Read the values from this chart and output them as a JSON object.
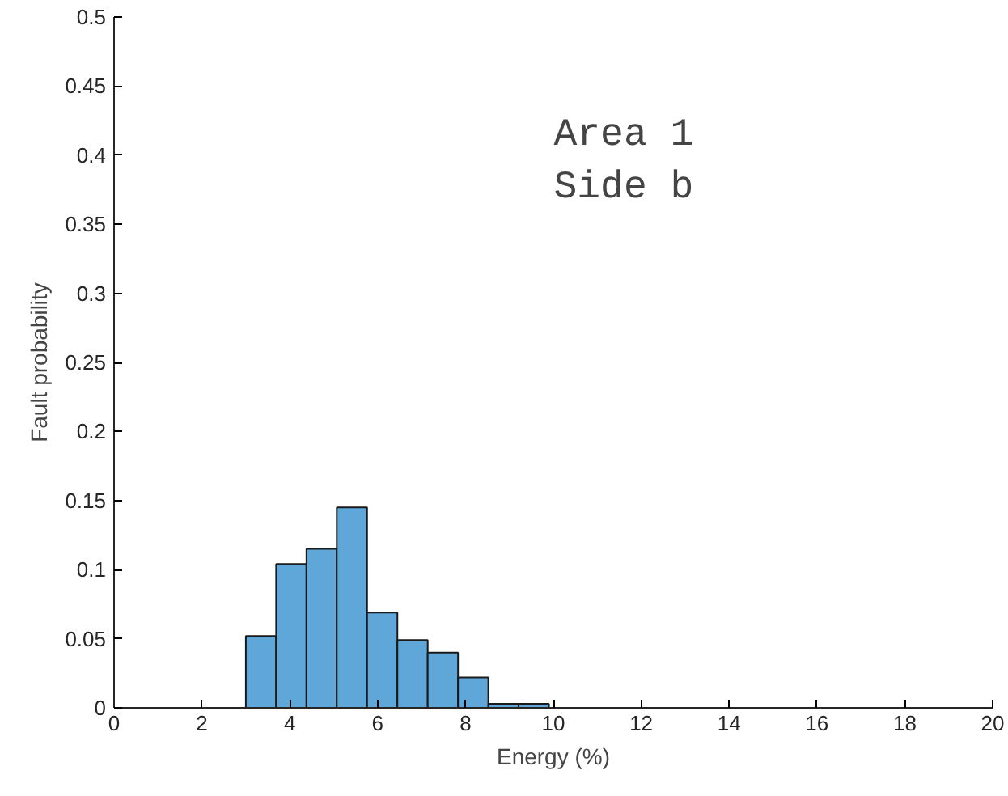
{
  "chart_data": {
    "type": "histogram",
    "xlabel": "Energy (%)",
    "ylabel": "Fault probability",
    "bins": [
      3.0,
      3.69,
      4.38,
      5.07,
      5.76,
      6.45,
      7.14,
      7.83,
      8.52,
      9.21,
      9.9
    ],
    "values": [
      0.052,
      0.104,
      0.115,
      0.145,
      0.069,
      0.049,
      0.04,
      0.022,
      0.003,
      0.003
    ],
    "color": "#5fa7d9",
    "xlim": [
      0,
      20
    ],
    "xticks": [
      0,
      2,
      4,
      6,
      8,
      10,
      12,
      14,
      16,
      18,
      20
    ],
    "ylim": [
      0,
      0.5
    ],
    "yticks": [
      0,
      0.05,
      0.1,
      0.15,
      0.2,
      0.25,
      0.3,
      0.35,
      0.4,
      0.45,
      0.5
    ],
    "annotations": [
      "Area 1\nSide b"
    ],
    "grid": false
  }
}
